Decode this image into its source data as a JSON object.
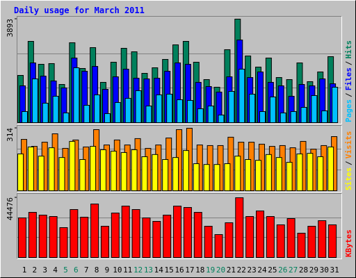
{
  "chart_data": [
    {
      "type": "bar",
      "title": "Daily usage for March 2011",
      "separator": "/",
      "ylim": [
        0,
        3893
      ],
      "yticks": [
        3893
      ],
      "grid": true,
      "series": [
        {
          "name": "Hits",
          "color": "#00805c",
          "values": [
            1777,
            3057,
            2195,
            2221,
            1437,
            3005,
            2038,
            2822,
            1516,
            2273,
            2796,
            2665,
            1855,
            2064,
            2378,
            2926,
            3057,
            2273,
            1620,
            1333,
            2744,
            3893,
            2508,
            2090,
            2430,
            1698,
            1620,
            2247,
            1542,
            1907,
            2482
          ]
        },
        {
          "name": "Files",
          "color": "#0000ff",
          "values": [
            1385,
            2247,
            1751,
            1568,
            1307,
            2430,
            1934,
            2116,
            1254,
            1725,
            2012,
            1672,
            1646,
            1672,
            1934,
            2247,
            2195,
            1516,
            1359,
            1150,
            1725,
            3109,
            1698,
            1907,
            1516,
            1385,
            993,
            1437,
            1385,
            1646,
            1463
          ]
        },
        {
          "name": "Pages",
          "color": "#00c0ff",
          "values": [
            418,
            1646,
            732,
            993,
            366,
            2064,
            653,
            1045,
            340,
            758,
            915,
            1202,
            627,
            1045,
            1071,
            862,
            836,
            523,
            627,
            287,
            1176,
            2012,
            1071,
            418,
            967,
            366,
            418,
            575,
            1019,
            444,
            1333
          ]
        }
      ]
    },
    {
      "type": "bar",
      "separator": "/",
      "ylim": [
        0,
        314
      ],
      "yticks": [
        314
      ],
      "grid": true,
      "series": [
        {
          "name": "Visits",
          "color": "#ff8000",
          "values": [
            258,
            223,
            244,
            286,
            213,
            255,
            220,
            307,
            230,
            255,
            230,
            262,
            213,
            230,
            265,
            307,
            314,
            230,
            227,
            227,
            269,
            244,
            244,
            234,
            223,
            227,
            216,
            248,
            209,
            227,
            272
          ]
        },
        {
          "name": "Sites",
          "color": "#ffff00",
          "values": [
            185,
            220,
            174,
            216,
            167,
            248,
            157,
            223,
            206,
            199,
            192,
            206,
            171,
            182,
            157,
            167,
            202,
            136,
            132,
            132,
            136,
            174,
            157,
            153,
            182,
            167,
            143,
            185,
            188,
            171,
            220
          ]
        }
      ]
    },
    {
      "type": "bar",
      "ylim": [
        0,
        44476
      ],
      "yticks": [
        44476
      ],
      "grid": true,
      "categories": [
        "1",
        "2",
        "3",
        "4",
        "5",
        "6",
        "7",
        "8",
        "9",
        "10",
        "11",
        "12",
        "13",
        "14",
        "15",
        "16",
        "17",
        "18",
        "19",
        "20",
        "21",
        "22",
        "23",
        "24",
        "25",
        "26",
        "27",
        "28",
        "29",
        "30",
        "31"
      ],
      "category_colors": [
        "#000000",
        "#000000",
        "#000000",
        "#000000",
        "#00805c",
        "#00805c",
        "#000000",
        "#000000",
        "#000000",
        "#000000",
        "#000000",
        "#00805c",
        "#00805c",
        "#000000",
        "#000000",
        "#000000",
        "#000000",
        "#000000",
        "#00805c",
        "#00805c",
        "#000000",
        "#000000",
        "#000000",
        "#000000",
        "#000000",
        "#00805c",
        "#00805c",
        "#000000",
        "#000000",
        "#000000",
        "#000000"
      ],
      "series": [
        {
          "name": "KBytes",
          "color": "#ff0000",
          "values": [
            29480,
            33610,
            31550,
            30510,
            22240,
            35690,
            30000,
            39820,
            23270,
            33100,
            38270,
            35690,
            29480,
            26890,
            31550,
            38270,
            37240,
            33610,
            23270,
            17070,
            25860,
            44476,
            30510,
            34650,
            30510,
            24310,
            28960,
            18100,
            23270,
            27410,
            24310
          ]
        }
      ]
    }
  ]
}
